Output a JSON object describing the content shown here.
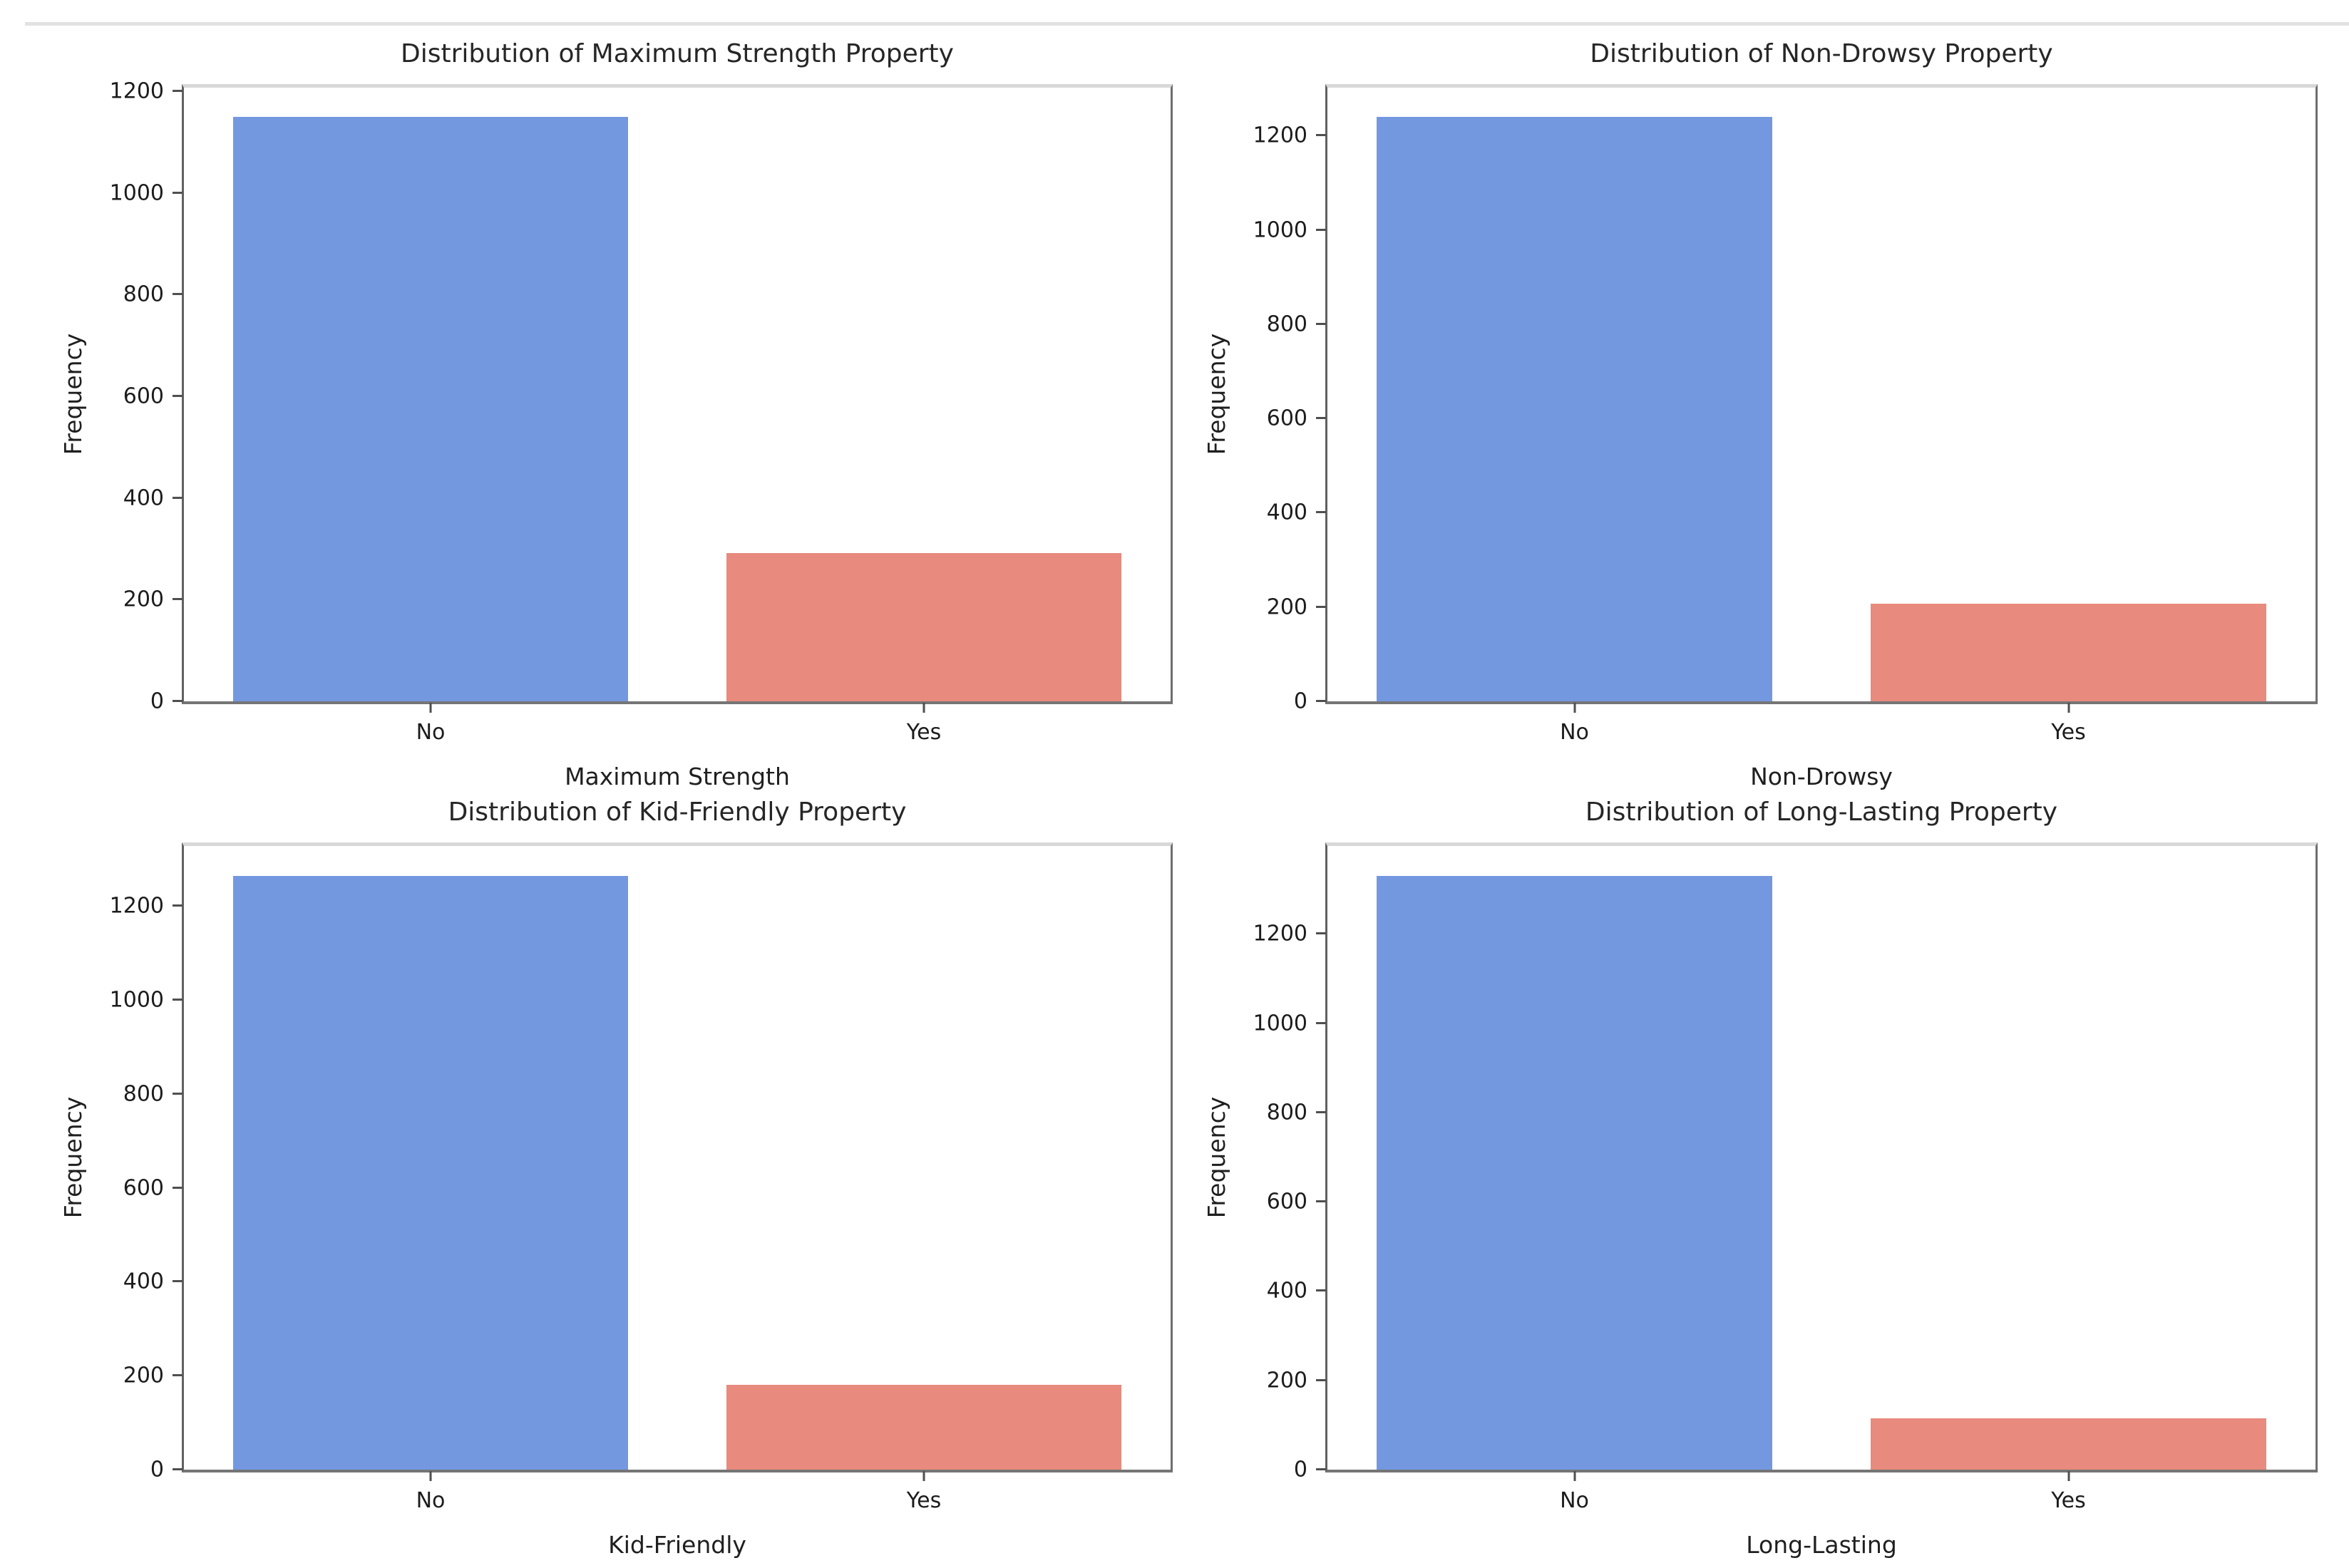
{
  "page": {
    "background": "#ffffff",
    "top_rule_color": "#e2e2e2"
  },
  "chart_data": [
    {
      "type": "bar",
      "title": "Distribution of Maximum Strength Property",
      "xlabel": "Maximum Strength",
      "ylabel": "Frequency",
      "categories": [
        "No",
        "Yes"
      ],
      "values": [
        1150,
        292
      ],
      "ylim": [
        0,
        1207
      ],
      "yticks": [
        0,
        200,
        400,
        600,
        800,
        1000,
        1200
      ],
      "bar_colors": [
        "#7398e0",
        "#e88a7d"
      ],
      "grid": false,
      "legend": null
    },
    {
      "type": "bar",
      "title": "Distribution of Non-Drowsy Property",
      "xlabel": "Non-Drowsy",
      "ylabel": "Frequency",
      "categories": [
        "No",
        "Yes"
      ],
      "values": [
        1240,
        207
      ],
      "ylim": [
        0,
        1302
      ],
      "yticks": [
        0,
        200,
        400,
        600,
        800,
        1000,
        1200
      ],
      "bar_colors": [
        "#7398e0",
        "#e88a7d"
      ],
      "grid": false,
      "legend": null
    },
    {
      "type": "bar",
      "title": "Distribution of Kid-Friendly Property",
      "xlabel": "Kid-Friendly",
      "ylabel": "Frequency",
      "categories": [
        "No",
        "Yes"
      ],
      "values": [
        1265,
        180
      ],
      "ylim": [
        0,
        1328
      ],
      "yticks": [
        0,
        200,
        400,
        600,
        800,
        1000,
        1200
      ],
      "bar_colors": [
        "#7398e0",
        "#e88a7d"
      ],
      "grid": false,
      "legend": null
    },
    {
      "type": "bar",
      "title": "Distribution of Long-Lasting Property",
      "xlabel": "Long-Lasting",
      "ylabel": "Frequency",
      "categories": [
        "No",
        "Yes"
      ],
      "values": [
        1330,
        115
      ],
      "ylim": [
        0,
        1397
      ],
      "yticks": [
        0,
        200,
        400,
        600,
        800,
        1000,
        1200
      ],
      "bar_colors": [
        "#7398e0",
        "#e88a7d"
      ],
      "grid": false,
      "legend": null
    }
  ]
}
